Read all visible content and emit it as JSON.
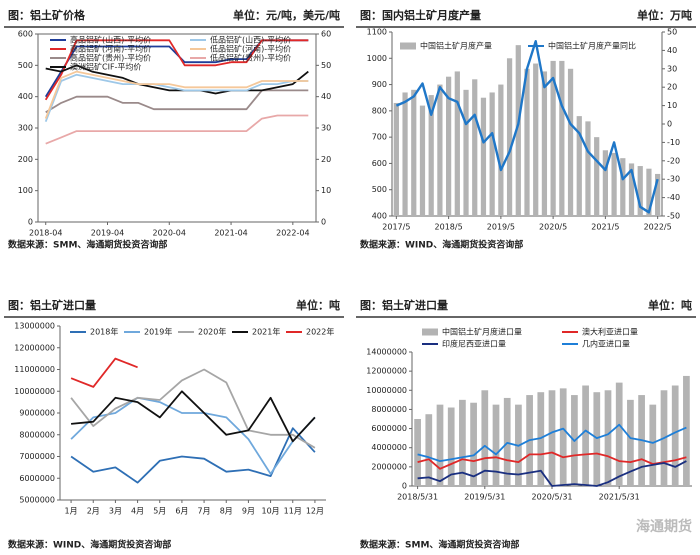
{
  "chart_data": [
    {
      "type": "line",
      "title": "图：铝土矿价格",
      "unit": "单位：元/吨，美元/吨",
      "source": "数据来源：SMM、海通期货投资咨询部",
      "categories": [
        "2018-04",
        null,
        null,
        null,
        "2019-04",
        null,
        null,
        null,
        "2020-04",
        null,
        null,
        null,
        "2021-04",
        null,
        null,
        null,
        "2022-04",
        null
      ],
      "ylim": [
        0,
        600
      ],
      "yticks": [
        0,
        100,
        200,
        300,
        400,
        500,
        600
      ],
      "y2lim": [
        0,
        60
      ],
      "y2ticks": [
        0,
        10,
        20,
        30,
        40,
        50,
        60
      ],
      "grid": false,
      "series": [
        {
          "name": "高品铝矿(山西)-平均价",
          "color": "#1f3d99",
          "type": "line",
          "values": [
            400,
            480,
            560,
            560,
            560,
            560,
            560,
            560,
            560,
            510,
            510,
            510,
            520,
            520,
            580,
            580,
            580,
            580
          ]
        },
        {
          "name": "高品铝矿(河南)-平均价",
          "color": "#e02828",
          "type": "line",
          "values": [
            390,
            470,
            580,
            580,
            580,
            580,
            580,
            580,
            580,
            500,
            500,
            500,
            510,
            510,
            580,
            580,
            580,
            580
          ]
        },
        {
          "name": "高品铝矿(贵州)-平均价",
          "color": "#9a8a8a",
          "type": "line",
          "values": [
            350,
            380,
            400,
            400,
            400,
            380,
            380,
            360,
            360,
            360,
            360,
            360,
            360,
            360,
            420,
            420,
            420,
            420
          ]
        },
        {
          "name": "澳洲铝矿CIF-平均价",
          "color": "#111111",
          "type": "line",
          "axis": "y2",
          "values": [
            49,
            48,
            50,
            48,
            47,
            46,
            44,
            43,
            42,
            42,
            42,
            41,
            42,
            42,
            42,
            43,
            44,
            48
          ]
        },
        {
          "name": "低品铝矿(山西)-平均价",
          "color": "#9ec8e8",
          "type": "line",
          "values": [
            320,
            450,
            470,
            460,
            450,
            440,
            440,
            440,
            430,
            420,
            420,
            420,
            420,
            420,
            440,
            440,
            450,
            450
          ]
        },
        {
          "name": "低品铝矿(河南)-平均价",
          "color": "#f5c89a",
          "type": "line",
          "values": [
            330,
            460,
            480,
            470,
            460,
            450,
            440,
            440,
            440,
            430,
            430,
            430,
            430,
            430,
            450,
            450,
            450,
            450
          ]
        },
        {
          "name": "低品铝矿(贵州)-平均价",
          "color": "#e8a8a8",
          "type": "line",
          "values": [
            250,
            270,
            290,
            290,
            290,
            290,
            290,
            290,
            290,
            290,
            290,
            290,
            290,
            290,
            330,
            340,
            340,
            340
          ]
        }
      ]
    },
    {
      "type": "combo",
      "title": "图：国内铝土矿月度产量",
      "unit": "单位：万吨",
      "source": "数据来源：WIND、海通期货投资咨询部",
      "categories": [
        "2017/5",
        null,
        null,
        null,
        null,
        null,
        "2018/5",
        null,
        null,
        null,
        null,
        null,
        "2019/5",
        null,
        null,
        null,
        null,
        null,
        "2020/5",
        null,
        null,
        null,
        null,
        null,
        "2021/5",
        null,
        null,
        null,
        null,
        null,
        "2022/5"
      ],
      "ylim": [
        400,
        1100
      ],
      "yticks": [
        400,
        500,
        600,
        700,
        800,
        900,
        1000,
        1100
      ],
      "y2lim": [
        -50,
        50
      ],
      "y2ticks": [
        -50,
        -40,
        -30,
        -20,
        -10,
        0,
        10,
        20,
        30,
        40,
        50
      ],
      "grid": false,
      "series": [
        {
          "name": "中国铝土矿月度产量",
          "color": "#b3b3b3",
          "type": "bar",
          "values": [
            830,
            870,
            880,
            820,
            860,
            900,
            930,
            950,
            880,
            920,
            850,
            870,
            900,
            1000,
            1050,
            960,
            980,
            950,
            990,
            990,
            960,
            780,
            760,
            700,
            650,
            640,
            620,
            600,
            590,
            580,
            560
          ]
        },
        {
          "name": "中国铝土矿月度产量同比",
          "color": "#1f77c8",
          "type": "line",
          "axis": "y2",
          "values": [
            10,
            12,
            15,
            22,
            5,
            20,
            14,
            12,
            0,
            5,
            -10,
            -5,
            -25,
            -15,
            0,
            30,
            45,
            20,
            25,
            10,
            0,
            -5,
            -15,
            -20,
            -25,
            -10,
            -30,
            -25,
            -45,
            -48,
            -30
          ]
        }
      ]
    },
    {
      "type": "line",
      "title": "图：铝土矿进口量",
      "unit": "单位：吨",
      "source": "数据来源：WIND、海通期货投资咨询部",
      "categories": [
        "1月",
        "2月",
        "3月",
        "4月",
        "5月",
        "6月",
        "7月",
        "8月",
        "9月",
        "10月",
        "11月",
        "12月"
      ],
      "ylim": [
        5000000,
        13000000
      ],
      "yticks": [
        5000000,
        6000000,
        7000000,
        8000000,
        9000000,
        10000000,
        11000000,
        12000000,
        13000000
      ],
      "grid": false,
      "series": [
        {
          "name": "2018年",
          "color": "#2e6fb5",
          "type": "line",
          "values": [
            7000000,
            6300000,
            6500000,
            5800000,
            6800000,
            7000000,
            6900000,
            6300000,
            6400000,
            6100000,
            8300000,
            7200000
          ]
        },
        {
          "name": "2019年",
          "color": "#6fa8dc",
          "type": "line",
          "values": [
            7800000,
            8800000,
            9000000,
            9700000,
            9500000,
            9000000,
            9000000,
            8800000,
            7800000,
            6200000,
            7700000,
            8800000
          ]
        },
        {
          "name": "2020年",
          "color": "#a6a6a6",
          "type": "line",
          "values": [
            9700000,
            8400000,
            9200000,
            9700000,
            9600000,
            10500000,
            11000000,
            10400000,
            8200000,
            8000000,
            8000000,
            7400000
          ]
        },
        {
          "name": "2021年",
          "color": "#111111",
          "type": "line",
          "values": [
            8500000,
            8600000,
            9700000,
            9500000,
            8800000,
            10000000,
            9000000,
            8000000,
            8200000,
            9700000,
            7700000,
            8800000
          ]
        },
        {
          "name": "2022年",
          "color": "#e02828",
          "type": "line",
          "values": [
            10600000,
            10200000,
            11500000,
            11100000,
            null,
            null,
            null,
            null,
            null,
            null,
            null,
            null
          ]
        }
      ]
    },
    {
      "type": "combo",
      "title": "图：铝土矿进口量",
      "unit": "单位：吨",
      "source": "数据来源：SMM、海通期货投资咨询部",
      "categories": [
        "2018/5/31",
        null,
        null,
        null,
        null,
        null,
        "2019/5/31",
        null,
        null,
        null,
        null,
        null,
        "2020/5/31",
        null,
        null,
        null,
        null,
        null,
        "2021/5/31",
        null,
        null,
        null,
        null,
        null,
        null
      ],
      "ylim": [
        0,
        14000000
      ],
      "yticks": [
        0,
        2000000,
        4000000,
        6000000,
        8000000,
        10000000,
        12000000,
        14000000
      ],
      "grid": false,
      "series": [
        {
          "name": "中国铝土矿月度进口量",
          "color": "#b3b3b3",
          "type": "bar",
          "values": [
            7000000,
            7500000,
            8500000,
            8200000,
            9000000,
            8700000,
            10000000,
            8500000,
            9200000,
            8500000,
            9500000,
            9800000,
            10000000,
            10200000,
            9500000,
            10500000,
            9800000,
            10000000,
            10800000,
            9000000,
            9500000,
            8500000,
            10000000,
            10500000,
            11500000
          ]
        },
        {
          "name": "澳大利亚进口量",
          "color": "#e02828",
          "type": "line",
          "values": [
            2500000,
            2800000,
            1800000,
            2300000,
            2800000,
            2600000,
            2900000,
            3000000,
            2700000,
            2500000,
            3300000,
            3300000,
            3500000,
            3000000,
            3200000,
            3300000,
            3400000,
            3100000,
            2600000,
            2500000,
            2800000,
            2300000,
            2500000,
            2700000,
            3000000
          ]
        },
        {
          "name": "印度尼西亚进口量",
          "color": "#1a2f80",
          "type": "line",
          "values": [
            800000,
            900000,
            500000,
            1200000,
            1400000,
            1000000,
            1600000,
            1500000,
            1300000,
            1200000,
            1400000,
            1600000,
            0,
            100000,
            200000,
            100000,
            0,
            400000,
            1000000,
            1500000,
            2000000,
            2200000,
            2400000,
            2000000,
            2600000
          ]
        },
        {
          "name": "几内亚进口量",
          "color": "#1e7fd8",
          "type": "line",
          "values": [
            3300000,
            3000000,
            2600000,
            2800000,
            3000000,
            3200000,
            4200000,
            3300000,
            4500000,
            4200000,
            4800000,
            5000000,
            5600000,
            6000000,
            4700000,
            5800000,
            5000000,
            5400000,
            6400000,
            5000000,
            4800000,
            4500000,
            5000000,
            5600000,
            6100000
          ]
        }
      ]
    }
  ],
  "watermark": "海通期货"
}
